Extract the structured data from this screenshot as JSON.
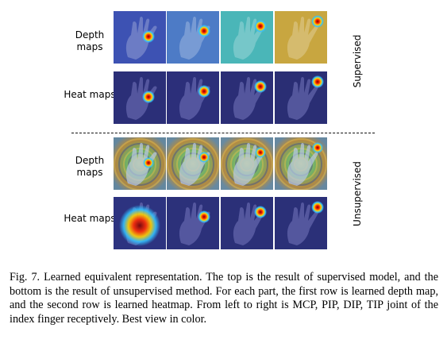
{
  "rows": {
    "sup_depth": "Depth maps",
    "sup_heat": "Heat maps",
    "unsup_depth": "Depth maps",
    "unsup_heat": "Heat maps"
  },
  "sections": {
    "supervised": "Supervised",
    "unsupervised": "Unsupervised"
  },
  "caption": "Fig. 7.  Learned equivalent representation. The top is the result of supervised model, and the bottom is the result of unsupervised method. For each part, the first row is learned depth map, and the second row is learned heatmap. From left to right is MCP, PIP, DIP, TIP joint of the index finger receptively. Best view in color.",
  "tiles": {
    "sup_depth_bg": [
      "#3d52b3",
      "#4d7bc6",
      "#4ab6b8",
      "#c8a640"
    ],
    "sup_heat_bg": [
      "#2b2f78",
      "#2c2f7a",
      "#2b2e76",
      "#2a2e74"
    ],
    "unsup_depth_bg": [
      "#7f9e55",
      "#8ea85a",
      "#92a95b",
      "#8ca459"
    ],
    "unsup_heat_bg": [
      "#2d3380",
      "#2c317a",
      "#2b3078",
      "#2b3078"
    ]
  }
}
